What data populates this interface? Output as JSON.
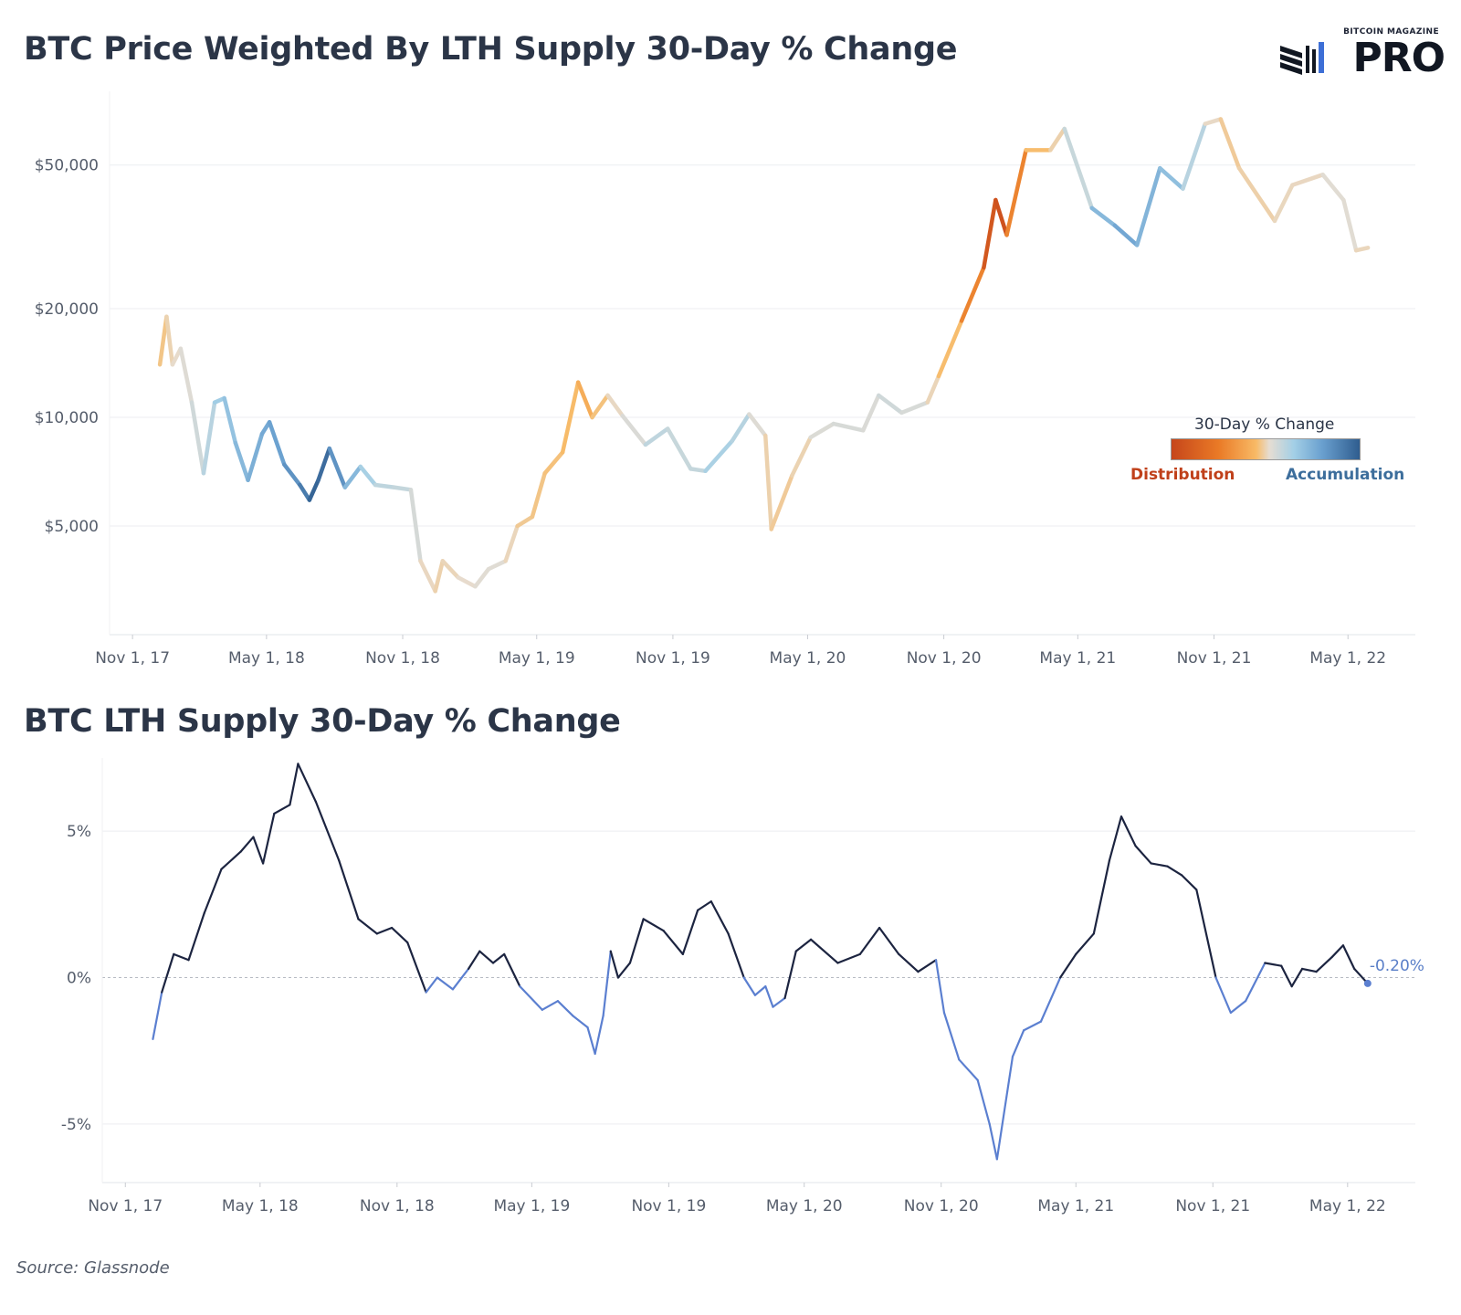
{
  "header": {
    "title_top": "BTC Price Weighted By LTH Supply 30-Day % Change",
    "title_bottom": "BTC LTH Supply 30-Day % Change",
    "logo_top": "BITCOIN MAGAZINE",
    "logo_main": "PRO"
  },
  "legend": {
    "title": "30-Day % Change",
    "left_label": "Distribution",
    "right_label": "Accumulation",
    "colors": [
      "#c6461b",
      "#ea7a26",
      "#f8ba66",
      "#e6ddd2",
      "#a3cfe6",
      "#6aa0cf",
      "#2f5d8f"
    ]
  },
  "footer": {
    "source": "Source: Glassnode"
  },
  "chart_data": [
    {
      "type": "line",
      "title": "BTC Price Weighted By LTH Supply 30-Day % Change",
      "scale": "log",
      "ylim": [
        2500,
        80000
      ],
      "y_ticks": [
        5000,
        10000,
        20000,
        50000
      ],
      "y_tick_labels": [
        "$5,000",
        "$10,000",
        "$20,000",
        "$50,000"
      ],
      "x_tick_labels": [
        "Nov 1, 17",
        "May 1, 18",
        "Nov 1, 18",
        "May 1, 19",
        "Nov 1, 19",
        "May 1, 20",
        "Nov 1, 20",
        "May 1, 21",
        "Nov 1, 21",
        "May 1, 22"
      ],
      "x_range": [
        "2017-10-01",
        "2022-07-31"
      ],
      "grid": true,
      "color_encoding": "LTH supply 30-day % change (orange = distribution, blue = accumulation)",
      "series": [
        {
          "points": [
            {
              "date": "2017-12-08",
              "price": 14000,
              "chg": -1.5
            },
            {
              "date": "2017-12-17",
              "price": 19000,
              "chg": -0.5
            },
            {
              "date": "2017-12-25",
              "price": 14000,
              "chg": 0.2
            },
            {
              "date": "2018-01-05",
              "price": 15500,
              "chg": 0.5
            },
            {
              "date": "2018-01-20",
              "price": 11000,
              "chg": 1.0
            },
            {
              "date": "2018-02-05",
              "price": 7000,
              "chg": 1.5
            },
            {
              "date": "2018-02-20",
              "price": 11000,
              "chg": 2.5
            },
            {
              "date": "2018-03-05",
              "price": 11300,
              "chg": 3.0
            },
            {
              "date": "2018-03-20",
              "price": 8500,
              "chg": 3.5
            },
            {
              "date": "2018-04-06",
              "price": 6700,
              "chg": 4.0
            },
            {
              "date": "2018-04-25",
              "price": 9000,
              "chg": 4.3
            },
            {
              "date": "2018-05-05",
              "price": 9700,
              "chg": 4.5
            },
            {
              "date": "2018-05-25",
              "price": 7400,
              "chg": 5.0
            },
            {
              "date": "2018-06-15",
              "price": 6500,
              "chg": 5.5
            },
            {
              "date": "2018-06-28",
              "price": 5900,
              "chg": 6.5
            },
            {
              "date": "2018-07-10",
              "price": 6700,
              "chg": 7.0
            },
            {
              "date": "2018-07-25",
              "price": 8200,
              "chg": 6.0
            },
            {
              "date": "2018-08-15",
              "price": 6400,
              "chg": 4.5
            },
            {
              "date": "2018-09-05",
              "price": 7300,
              "chg": 3.0
            },
            {
              "date": "2018-09-25",
              "price": 6500,
              "chg": 2.0
            },
            {
              "date": "2018-10-20",
              "price": 6400,
              "chg": 1.6
            },
            {
              "date": "2018-11-12",
              "price": 6300,
              "chg": 1.6
            },
            {
              "date": "2018-11-25",
              "price": 4000,
              "chg": 0.5
            },
            {
              "date": "2018-12-15",
              "price": 3300,
              "chg": -0.2
            },
            {
              "date": "2018-12-25",
              "price": 4000,
              "chg": -0.3
            },
            {
              "date": "2019-01-15",
              "price": 3600,
              "chg": 0.3
            },
            {
              "date": "2019-02-07",
              "price": 3400,
              "chg": 0.5
            },
            {
              "date": "2019-02-25",
              "price": 3800,
              "chg": 0.8
            },
            {
              "date": "2019-03-20",
              "price": 4000,
              "chg": 0.6
            },
            {
              "date": "2019-04-05",
              "price": 5000,
              "chg": -0.5
            },
            {
              "date": "2019-04-25",
              "price": 5300,
              "chg": -1.0
            },
            {
              "date": "2019-05-12",
              "price": 7000,
              "chg": -1.0
            },
            {
              "date": "2019-06-05",
              "price": 8000,
              "chg": -1.5
            },
            {
              "date": "2019-06-26",
              "price": 12500,
              "chg": -1.7
            },
            {
              "date": "2019-07-15",
              "price": 10000,
              "chg": -2.5
            },
            {
              "date": "2019-08-05",
              "price": 11500,
              "chg": 0.1
            },
            {
              "date": "2019-08-25",
              "price": 10100,
              "chg": 0.3
            },
            {
              "date": "2019-09-25",
              "price": 8400,
              "chg": 1.5
            },
            {
              "date": "2019-10-25",
              "price": 9300,
              "chg": 2.0
            },
            {
              "date": "2019-11-25",
              "price": 7200,
              "chg": 1.0
            },
            {
              "date": "2019-12-15",
              "price": 7100,
              "chg": 2.2
            },
            {
              "date": "2020-01-20",
              "price": 8600,
              "chg": 2.6
            },
            {
              "date": "2020-02-12",
              "price": 10200,
              "chg": 1.5
            },
            {
              "date": "2020-03-05",
              "price": 8900,
              "chg": 0.0
            },
            {
              "date": "2020-03-13",
              "price": 4900,
              "chg": -0.5
            },
            {
              "date": "2020-04-10",
              "price": 6900,
              "chg": -0.8
            },
            {
              "date": "2020-05-05",
              "price": 8800,
              "chg": 0.5
            },
            {
              "date": "2020-06-05",
              "price": 9600,
              "chg": 1.2
            },
            {
              "date": "2020-07-15",
              "price": 9200,
              "chg": 0.8
            },
            {
              "date": "2020-08-05",
              "price": 11500,
              "chg": 1.0
            },
            {
              "date": "2020-09-05",
              "price": 10300,
              "chg": 1.5
            },
            {
              "date": "2020-10-10",
              "price": 11000,
              "chg": 0.5
            },
            {
              "date": "2020-10-25",
              "price": 13000,
              "chg": -0.5
            },
            {
              "date": "2020-11-25",
              "price": 18500,
              "chg": -2.5
            },
            {
              "date": "2020-12-25",
              "price": 26000,
              "chg": -4.5
            },
            {
              "date": "2021-01-10",
              "price": 40000,
              "chg": -6.0
            },
            {
              "date": "2021-01-25",
              "price": 32000,
              "chg": -5.0
            },
            {
              "date": "2021-02-20",
              "price": 55000,
              "chg": -2.0
            },
            {
              "date": "2021-03-25",
              "price": 55000,
              "chg": -1.0
            },
            {
              "date": "2021-04-13",
              "price": 63000,
              "chg": 0.5
            },
            {
              "date": "2021-05-20",
              "price": 38000,
              "chg": 2.5
            },
            {
              "date": "2021-06-20",
              "price": 34000,
              "chg": 5.0
            },
            {
              "date": "2021-07-20",
              "price": 30000,
              "chg": 4.0
            },
            {
              "date": "2021-08-20",
              "price": 49000,
              "chg": 3.8
            },
            {
              "date": "2021-09-20",
              "price": 43000,
              "chg": 3.0
            },
            {
              "date": "2021-10-20",
              "price": 65000,
              "chg": 1.0
            },
            {
              "date": "2021-11-10",
              "price": 67000,
              "chg": -0.5
            },
            {
              "date": "2021-12-05",
              "price": 49000,
              "chg": -0.8
            },
            {
              "date": "2022-01-22",
              "price": 35000,
              "chg": 0.2
            },
            {
              "date": "2022-02-15",
              "price": 44000,
              "chg": 0.0
            },
            {
              "date": "2022-03-28",
              "price": 47000,
              "chg": 0.3
            },
            {
              "date": "2022-04-25",
              "price": 40000,
              "chg": 1.0
            },
            {
              "date": "2022-05-12",
              "price": 29000,
              "chg": 0.3
            },
            {
              "date": "2022-05-28",
              "price": 29500,
              "chg": -0.2
            }
          ]
        }
      ]
    },
    {
      "type": "line",
      "title": "BTC LTH Supply 30-Day % Change",
      "ylim": [
        -7,
        7.5
      ],
      "y_ticks": [
        -5,
        0,
        5
      ],
      "y_tick_labels": [
        "-5%",
        "0%",
        "5%"
      ],
      "x_tick_labels": [
        "Nov 1, 17",
        "May 1, 18",
        "Nov 1, 18",
        "May 1, 19",
        "Nov 1, 19",
        "May 1, 20",
        "Nov 1, 20",
        "May 1, 21",
        "Nov 1, 21",
        "May 1, 22"
      ],
      "x_range": [
        "2017-10-01",
        "2022-07-31"
      ],
      "grid": true,
      "positive_color": "#1c2440",
      "negative_color": "#5b7fd0",
      "last_value_label": "-0.20%",
      "series": [
        {
          "points": [
            {
              "date": "2017-12-08",
              "value": -2.1
            },
            {
              "date": "2017-12-20",
              "value": -0.5
            },
            {
              "date": "2018-01-05",
              "value": 0.8
            },
            {
              "date": "2018-01-25",
              "value": 0.6
            },
            {
              "date": "2018-02-15",
              "value": 2.2
            },
            {
              "date": "2018-03-10",
              "value": 3.7
            },
            {
              "date": "2018-04-05",
              "value": 4.3
            },
            {
              "date": "2018-04-22",
              "value": 4.8
            },
            {
              "date": "2018-05-05",
              "value": 3.9
            },
            {
              "date": "2018-05-20",
              "value": 5.6
            },
            {
              "date": "2018-06-10",
              "value": 5.9
            },
            {
              "date": "2018-06-21",
              "value": 7.3
            },
            {
              "date": "2018-07-15",
              "value": 6.0
            },
            {
              "date": "2018-08-15",
              "value": 4.0
            },
            {
              "date": "2018-09-10",
              "value": 2.0
            },
            {
              "date": "2018-10-05",
              "value": 1.5
            },
            {
              "date": "2018-10-25",
              "value": 1.7
            },
            {
              "date": "2018-11-15",
              "value": 1.2
            },
            {
              "date": "2018-12-10",
              "value": -0.5
            },
            {
              "date": "2018-12-25",
              "value": 0.0
            },
            {
              "date": "2019-01-15",
              "value": -0.4
            },
            {
              "date": "2019-02-05",
              "value": 0.3
            },
            {
              "date": "2019-02-20",
              "value": 0.9
            },
            {
              "date": "2019-03-10",
              "value": 0.5
            },
            {
              "date": "2019-03-25",
              "value": 0.8
            },
            {
              "date": "2019-04-15",
              "value": -0.3
            },
            {
              "date": "2019-05-15",
              "value": -1.1
            },
            {
              "date": "2019-06-05",
              "value": -0.8
            },
            {
              "date": "2019-06-25",
              "value": -1.3
            },
            {
              "date": "2019-07-15",
              "value": -1.7
            },
            {
              "date": "2019-07-25",
              "value": -2.6
            },
            {
              "date": "2019-08-05",
              "value": -1.3
            },
            {
              "date": "2019-08-15",
              "value": 0.9
            },
            {
              "date": "2019-08-25",
              "value": 0.0
            },
            {
              "date": "2019-09-10",
              "value": 0.5
            },
            {
              "date": "2019-09-28",
              "value": 2.0
            },
            {
              "date": "2019-10-25",
              "value": 1.6
            },
            {
              "date": "2019-11-20",
              "value": 0.8
            },
            {
              "date": "2019-12-10",
              "value": 2.3
            },
            {
              "date": "2019-12-28",
              "value": 2.6
            },
            {
              "date": "2020-01-20",
              "value": 1.5
            },
            {
              "date": "2020-02-10",
              "value": 0.0
            },
            {
              "date": "2020-02-25",
              "value": -0.6
            },
            {
              "date": "2020-03-10",
              "value": -0.3
            },
            {
              "date": "2020-03-20",
              "value": -1.0
            },
            {
              "date": "2020-04-05",
              "value": -0.7
            },
            {
              "date": "2020-04-20",
              "value": 0.9
            },
            {
              "date": "2020-05-10",
              "value": 1.3
            },
            {
              "date": "2020-06-15",
              "value": 0.5
            },
            {
              "date": "2020-07-15",
              "value": 0.8
            },
            {
              "date": "2020-08-10",
              "value": 1.7
            },
            {
              "date": "2020-09-05",
              "value": 0.8
            },
            {
              "date": "2020-10-01",
              "value": 0.2
            },
            {
              "date": "2020-10-25",
              "value": 0.6
            },
            {
              "date": "2020-11-05",
              "value": -1.2
            },
            {
              "date": "2020-11-25",
              "value": -2.8
            },
            {
              "date": "2020-12-20",
              "value": -3.5
            },
            {
              "date": "2021-01-05",
              "value": -5.0
            },
            {
              "date": "2021-01-15",
              "value": -6.2
            },
            {
              "date": "2021-02-05",
              "value": -2.7
            },
            {
              "date": "2021-02-20",
              "value": -1.8
            },
            {
              "date": "2021-03-15",
              "value": -1.5
            },
            {
              "date": "2021-04-10",
              "value": 0.0
            },
            {
              "date": "2021-05-01",
              "value": 0.8
            },
            {
              "date": "2021-05-25",
              "value": 1.5
            },
            {
              "date": "2021-06-15",
              "value": 4.0
            },
            {
              "date": "2021-07-01",
              "value": 5.5
            },
            {
              "date": "2021-07-20",
              "value": 4.5
            },
            {
              "date": "2021-08-10",
              "value": 3.9
            },
            {
              "date": "2021-09-01",
              "value": 3.8
            },
            {
              "date": "2021-09-20",
              "value": 3.5
            },
            {
              "date": "2021-10-10",
              "value": 3.0
            },
            {
              "date": "2021-11-05",
              "value": 0.0
            },
            {
              "date": "2021-11-25",
              "value": -1.2
            },
            {
              "date": "2021-12-15",
              "value": -0.8
            },
            {
              "date": "2022-01-10",
              "value": 0.5
            },
            {
              "date": "2022-02-01",
              "value": 0.4
            },
            {
              "date": "2022-02-15",
              "value": -0.3
            },
            {
              "date": "2022-03-01",
              "value": 0.3
            },
            {
              "date": "2022-03-20",
              "value": 0.2
            },
            {
              "date": "2022-04-10",
              "value": 0.7
            },
            {
              "date": "2022-04-25",
              "value": 1.1
            },
            {
              "date": "2022-05-10",
              "value": 0.3
            },
            {
              "date": "2022-05-28",
              "value": -0.2
            }
          ]
        }
      ]
    }
  ]
}
